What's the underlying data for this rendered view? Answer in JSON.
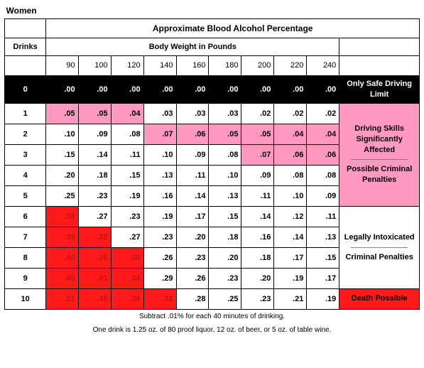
{
  "title": "Women",
  "header_main": "Approximate Blood Alcohol Percentage",
  "header_drinks": "Drinks",
  "header_weight": "Body Weight in Pounds",
  "weights": [
    "90",
    "100",
    "120",
    "140",
    "160",
    "180",
    "200",
    "220",
    "240"
  ],
  "rows": [
    {
      "d": "0",
      "v": [
        ".00",
        ".00",
        ".00",
        ".00",
        ".00",
        ".00",
        ".00",
        ".00",
        ".00"
      ],
      "c": [
        "k",
        "k",
        "k",
        "k",
        "k",
        "k",
        "k",
        "k",
        "k"
      ]
    },
    {
      "d": "1",
      "v": [
        ".05",
        ".05",
        ".04",
        ".03",
        ".03",
        ".03",
        ".02",
        ".02",
        ".02"
      ],
      "c": [
        "p",
        "p",
        "p",
        "",
        "",
        "",
        "",
        "",
        ""
      ]
    },
    {
      "d": "2",
      "v": [
        ".10",
        ".09",
        ".08",
        ".07",
        ".06",
        ".05",
        ".05",
        ".04",
        ".04"
      ],
      "c": [
        "",
        "",
        "",
        "p",
        "p",
        "p",
        "p",
        "p",
        "p"
      ]
    },
    {
      "d": "3",
      "v": [
        ".15",
        ".14",
        ".11",
        ".10",
        ".09",
        ".08",
        ".07",
        ".06",
        ".06"
      ],
      "c": [
        "",
        "",
        "",
        "",
        "",
        "",
        "p",
        "p",
        "p"
      ]
    },
    {
      "d": "4",
      "v": [
        ".20",
        ".18",
        ".15",
        ".13",
        ".11",
        ".10",
        ".09",
        ".08",
        ".08"
      ],
      "c": [
        "",
        "",
        "",
        "",
        "",
        "",
        "",
        "",
        ""
      ]
    },
    {
      "d": "5",
      "v": [
        ".25",
        ".23",
        ".19",
        ".16",
        ".14",
        ".13",
        ".11",
        ".10",
        ".09"
      ],
      "c": [
        "",
        "",
        "",
        "",
        "",
        "",
        "",
        "",
        ""
      ]
    },
    {
      "d": "6",
      "v": [
        ".30",
        ".27",
        ".23",
        ".19",
        ".17",
        ".15",
        ".14",
        ".12",
        ".11"
      ],
      "c": [
        "r",
        "",
        "",
        "",
        "",
        "",
        "",
        "",
        ""
      ]
    },
    {
      "d": "7",
      "v": [
        ".35",
        ".32",
        ".27",
        ".23",
        ".20",
        ".18",
        ".16",
        ".14",
        ".13"
      ],
      "c": [
        "r",
        "r",
        "",
        "",
        "",
        "",
        "",
        "",
        ""
      ]
    },
    {
      "d": "8",
      "v": [
        ".40",
        ".36",
        ".30",
        ".26",
        ".23",
        ".20",
        ".18",
        ".17",
        ".15"
      ],
      "c": [
        "r",
        "r",
        "r",
        "",
        "",
        "",
        "",
        "",
        ""
      ]
    },
    {
      "d": "9",
      "v": [
        ".45",
        ".41",
        ".34",
        ".29",
        ".26",
        ".23",
        ".20",
        ".19",
        ".17"
      ],
      "c": [
        "r",
        "r",
        "r",
        "",
        "",
        "",
        "",
        "",
        ""
      ]
    },
    {
      "d": "10",
      "v": [
        ".51",
        ".45",
        ".38",
        ".32",
        ".28",
        ".25",
        ".23",
        ".21",
        ".19"
      ],
      "c": [
        "r",
        "r",
        "r",
        "r",
        "",
        "",
        "",
        "",
        ""
      ]
    }
  ],
  "side": {
    "zero": "Only Safe Driving Limit",
    "group1a": "Driving Skills Significantly Affected",
    "group1b": "Possible Criminal Penalties",
    "group2a": "Legally Intoxicated",
    "group2b": "Criminal Penalties",
    "death": "Death Possible"
  },
  "footnote1": "Subtract .01% for each 40 minutes of drinking.",
  "footnote2": "One drink is 1.25 oz. of 80 proof liquor, 12 oz. of beer, or 5 oz. of table wine.",
  "colors": {
    "pink": "#ff99c2",
    "red": "#ff1a1a",
    "black": "#000000",
    "white": "#ffffff"
  }
}
